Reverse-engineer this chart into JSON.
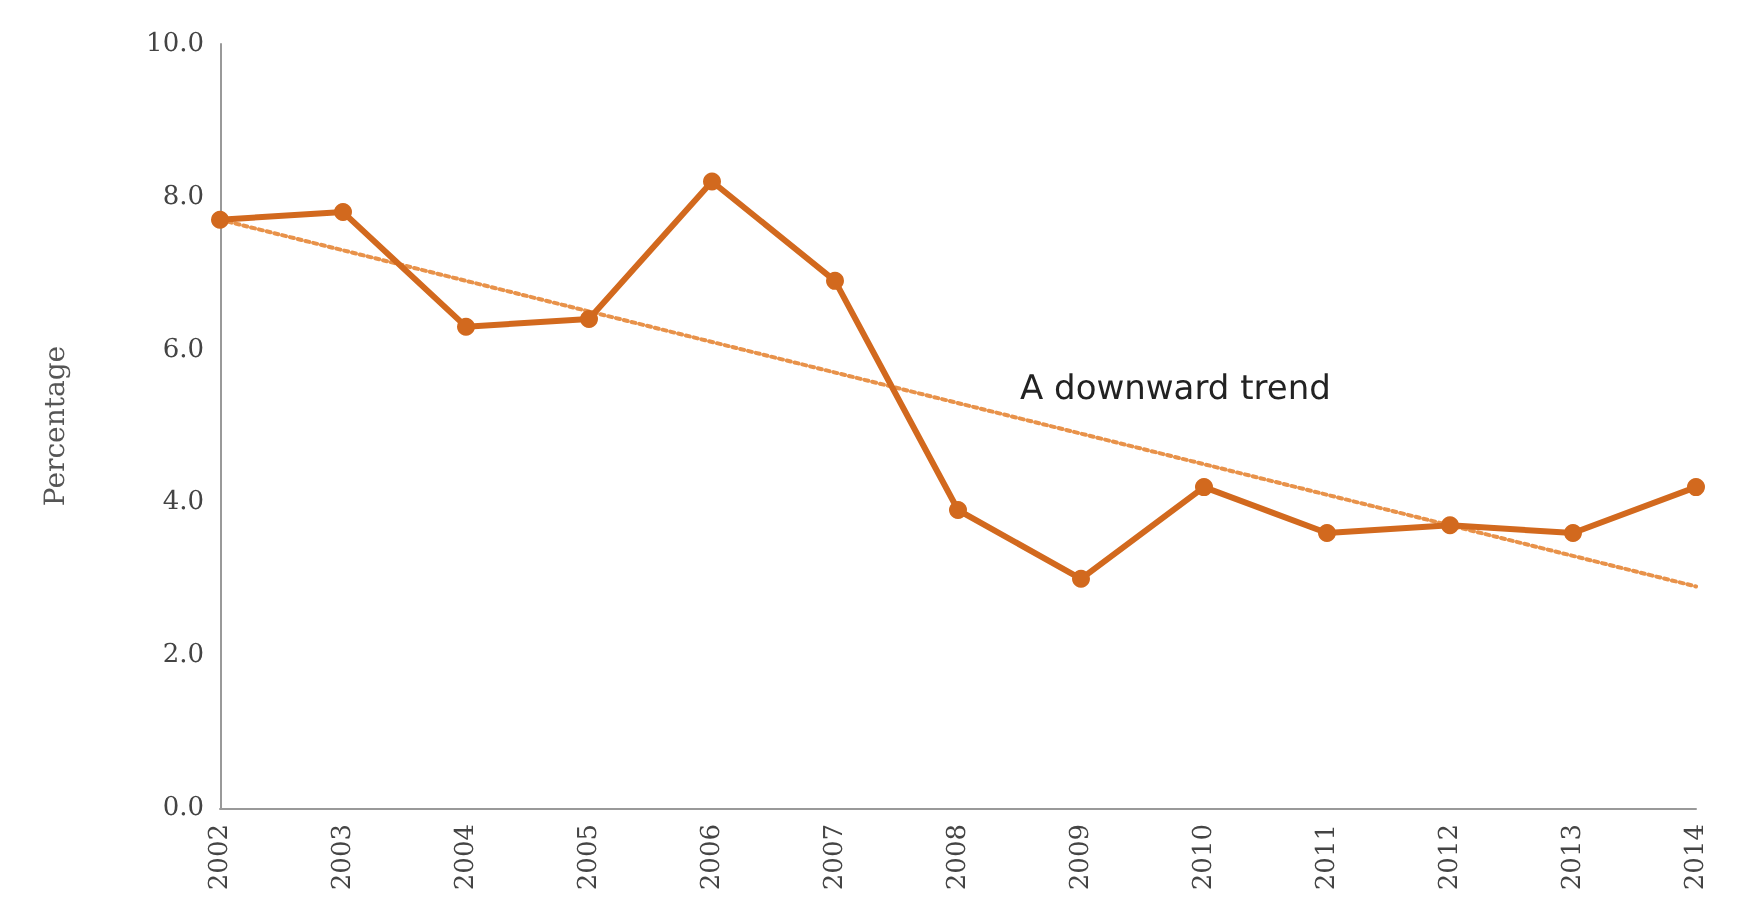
{
  "chart_data": {
    "type": "line",
    "ylabel": "Percentage",
    "categories": [
      "2002",
      "2003",
      "2004",
      "2005",
      "2006",
      "2007",
      "2008",
      "2009",
      "2010",
      "2011",
      "2012",
      "2013",
      "2014"
    ],
    "series": [
      {
        "color": "#d2691e",
        "marker": "circle",
        "line_style": "solid",
        "values": [
          7.7,
          7.8,
          6.3,
          6.4,
          8.2,
          6.9,
          3.9,
          3.0,
          4.2,
          3.6,
          3.7,
          3.6,
          4.2
        ]
      },
      {
        "type": "line",
        "color": "#e8924a",
        "marker": "none",
        "line_style": "dotted",
        "values": [
          7.7,
          null,
          null,
          null,
          null,
          null,
          null,
          null,
          null,
          null,
          null,
          null,
          2.9
        ]
      }
    ],
    "ylim": [
      0,
      10
    ],
    "yticks": [
      {
        "value": 0,
        "label": "0.0"
      },
      {
        "value": 2,
        "label": "2.0"
      },
      {
        "value": 4,
        "label": "4.0"
      },
      {
        "value": 6,
        "label": "6.0"
      },
      {
        "value": 8,
        "label": "8.0"
      },
      {
        "value": 10,
        "label": "10.0"
      }
    ],
    "annotations": [
      "A downward trend"
    ]
  }
}
